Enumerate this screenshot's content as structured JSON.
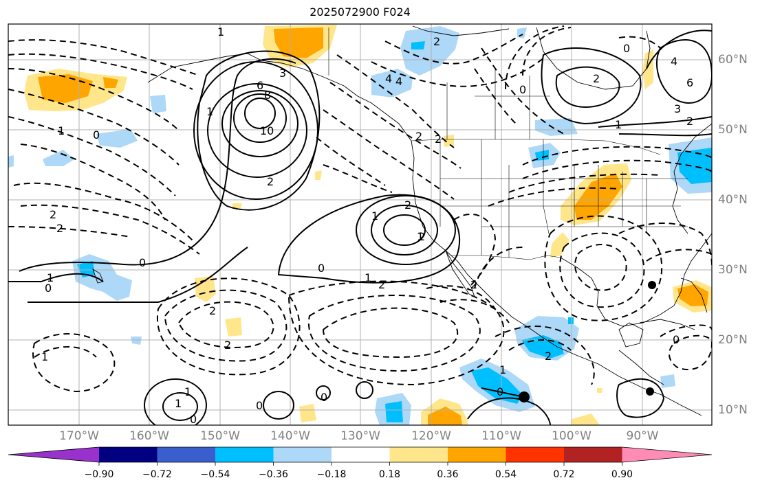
{
  "title": "2025072900 F024",
  "lat_labels": [
    "60°N",
    "50°N",
    "40°N",
    "30°N",
    "20°N",
    "10°N"
  ],
  "lon_labels": [
    "170°W",
    "160°W",
    "150°W",
    "140°W",
    "130°W",
    "120°W",
    "110°W",
    "100°W",
    "90°W"
  ],
  "colorbar": {
    "labels": [
      "−0.90",
      "−0.72",
      "−0.54",
      "−0.36",
      "−0.18",
      "0.18",
      "0.36",
      "0.54",
      "0.72",
      "0.90"
    ],
    "colors": [
      "#9932cc",
      "#000080",
      "#3a5fcd",
      "#00bfff",
      "#add8f7",
      "#ffffff",
      "#ffe68a",
      "#ffa500",
      "#ff3300",
      "#b22222",
      "#ff8cb4"
    ]
  },
  "contour_labels": [
    {
      "text": "1"
    },
    {
      "text": "1"
    },
    {
      "text": "1"
    },
    {
      "text": "0"
    },
    {
      "text": "2"
    },
    {
      "text": "1"
    },
    {
      "text": "4"
    },
    {
      "text": "6"
    },
    {
      "text": "8"
    },
    {
      "text": "10"
    },
    {
      "text": "2"
    },
    {
      "text": "2"
    },
    {
      "text": "2"
    },
    {
      "text": "0"
    },
    {
      "text": "1"
    },
    {
      "text": "2"
    },
    {
      "text": "2"
    },
    {
      "text": "2"
    },
    {
      "text": "0"
    },
    {
      "text": "1"
    },
    {
      "text": "2"
    },
    {
      "text": "1"
    },
    {
      "text": "0"
    },
    {
      "text": "2"
    },
    {
      "text": "1"
    },
    {
      "text": "0"
    },
    {
      "text": "1"
    },
    {
      "text": "2"
    },
    {
      "text": "0"
    },
    {
      "text": "2"
    },
    {
      "text": "1"
    },
    {
      "text": "0"
    },
    {
      "text": "0"
    },
    {
      "text": "1"
    },
    {
      "text": "2"
    },
    {
      "text": "6"
    },
    {
      "text": "4"
    },
    {
      "text": "3"
    },
    {
      "text": "2"
    },
    {
      "text": "0"
    },
    {
      "text": "0"
    },
    {
      "text": "1"
    },
    {
      "text": "4"
    },
    {
      "text": "2"
    },
    {
      "text": "3"
    },
    {
      "text": "2"
    },
    {
      "text": "0"
    }
  ]
}
